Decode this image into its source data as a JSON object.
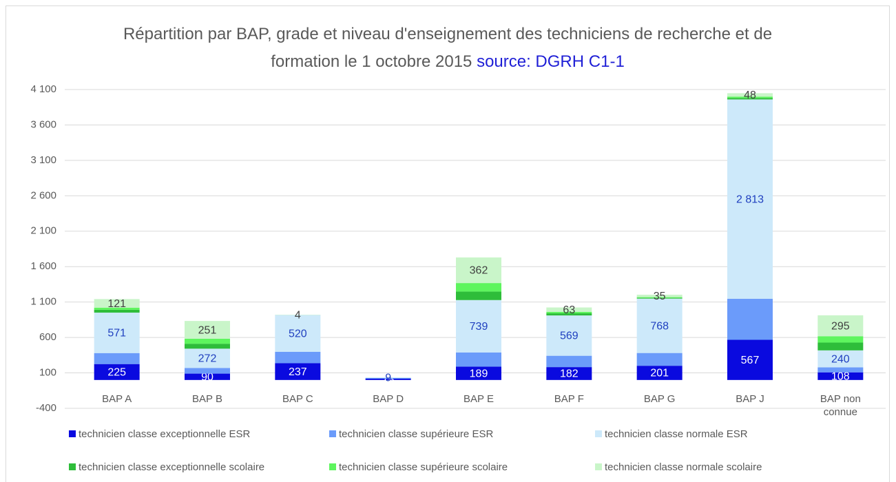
{
  "chart_data": {
    "type": "stacked_bar",
    "title": "Répartition par BAP, grade et niveau d'enseignement des techniciens de recherche et de formation le 1 octobre 2015",
    "subtitle": "source: DGRH C1-1",
    "categories": [
      "BAP A",
      "BAP B",
      "BAP C",
      "BAP D",
      "BAP E",
      "BAP F",
      "BAP G",
      "BAP J",
      "BAP non connue"
    ],
    "series": [
      {
        "name": "technicien classe exceptionnelle ESR",
        "color": "#0a0adf",
        "values": [
          225,
          90,
          237,
          18,
          189,
          182,
          201,
          567,
          108
        ],
        "value_labels": [
          "225",
          "90",
          "237",
          "18",
          "189",
          "182",
          "201",
          "567",
          "108"
        ]
      },
      {
        "name": "technicien classe supérieure ESR",
        "color": "#6b9bfa",
        "values": [
          155,
          80,
          160,
          10,
          200,
          160,
          180,
          580,
          70
        ]
      },
      {
        "name": "technicien classe normale ESR",
        "color": "#cde9fa",
        "values": [
          571,
          272,
          520,
          9,
          739,
          569,
          768,
          2813,
          240
        ],
        "value_labels": [
          "571",
          "272",
          "520",
          "9",
          "739",
          "569",
          "768",
          "2 813",
          "240"
        ]
      },
      {
        "name": "technicien classe exceptionnelle scolaire",
        "color": "#2ebd3a",
        "values": [
          40,
          70,
          0,
          0,
          120,
          30,
          10,
          20,
          110
        ]
      },
      {
        "name": "technicien classe supérieure scolaire",
        "color": "#5ef55e",
        "values": [
          30,
          70,
          0,
          0,
          120,
          20,
          10,
          20,
          90
        ]
      },
      {
        "name": "technicien classe normale scolaire",
        "color": "#c9f5c9",
        "values": [
          121,
          251,
          4,
          0,
          362,
          63,
          35,
          48,
          295
        ],
        "value_labels": [
          "121",
          "251",
          "4",
          null,
          "362",
          "63",
          "35",
          "48",
          "295"
        ]
      }
    ],
    "ylim": [
      -400,
      4100
    ],
    "yticks": [
      -400,
      100,
      600,
      {
        "value": 1100,
        "label": "1 100"
      },
      {
        "value": 1600,
        "label": "1 600"
      },
      {
        "value": 2100,
        "label": "2 100"
      },
      {
        "value": 2600,
        "label": "2 600"
      },
      {
        "value": 3100,
        "label": "3 100"
      },
      {
        "value": 3600,
        "label": "3 600"
      },
      {
        "value": 4100,
        "label": "4 100"
      }
    ],
    "grid": true,
    "legend": "bottom"
  }
}
